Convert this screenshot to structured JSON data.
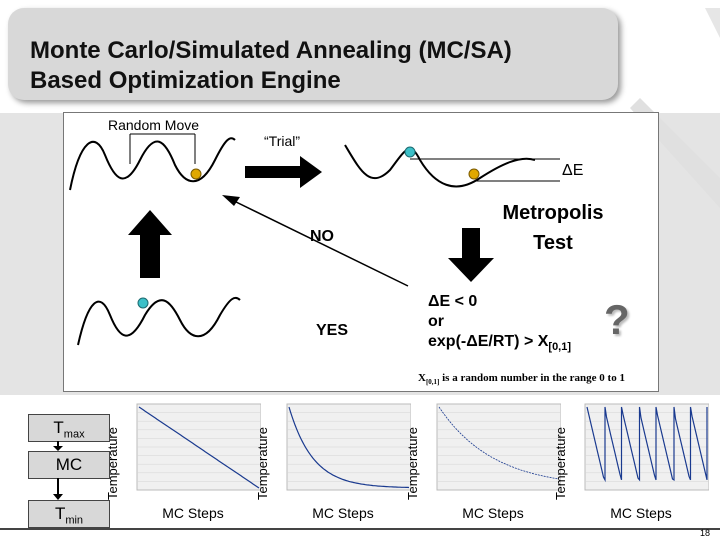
{
  "title": "Monte Carlo/Simulated Annealing (MC/SA)\nBased Optimization Engine",
  "diagram": {
    "random_move": "Random Move",
    "trial": "“Trial”",
    "delta_e": "ΔE",
    "metropolis": "Metropolis\nTest",
    "no": "NO",
    "yes": "YES",
    "cond1": "ΔE < 0",
    "cond2": "or",
    "cond3_pre": "exp(-ΔE/RT) > X",
    "cond3_sub": "[0,1]",
    "question": "?",
    "footnote_pre": "X",
    "footnote_sub": "[0,1]",
    "footnote_post": " is a random number in the range 0 to 1"
  },
  "schedule": {
    "tmax": "T",
    "tmax_sub": "max",
    "mc": "MC",
    "tmin": "T",
    "tmin_sub": "min"
  },
  "plots": [
    {
      "ylabel": "Temperature",
      "xlabel": "MC Steps",
      "kind": "linear"
    },
    {
      "ylabel": "Temperature",
      "xlabel": "MC Steps",
      "kind": "exponential"
    },
    {
      "ylabel": "Temperature",
      "xlabel": "MC Steps",
      "kind": "slow-decay"
    },
    {
      "ylabel": "Temperature",
      "xlabel": "MC Steps",
      "kind": "sawtooth"
    }
  ],
  "page_number": "18",
  "colors": {
    "ball_gold": "#e0a800",
    "ball_teal": "#3cc0c8",
    "curve_blue": "#1a3a8f"
  }
}
